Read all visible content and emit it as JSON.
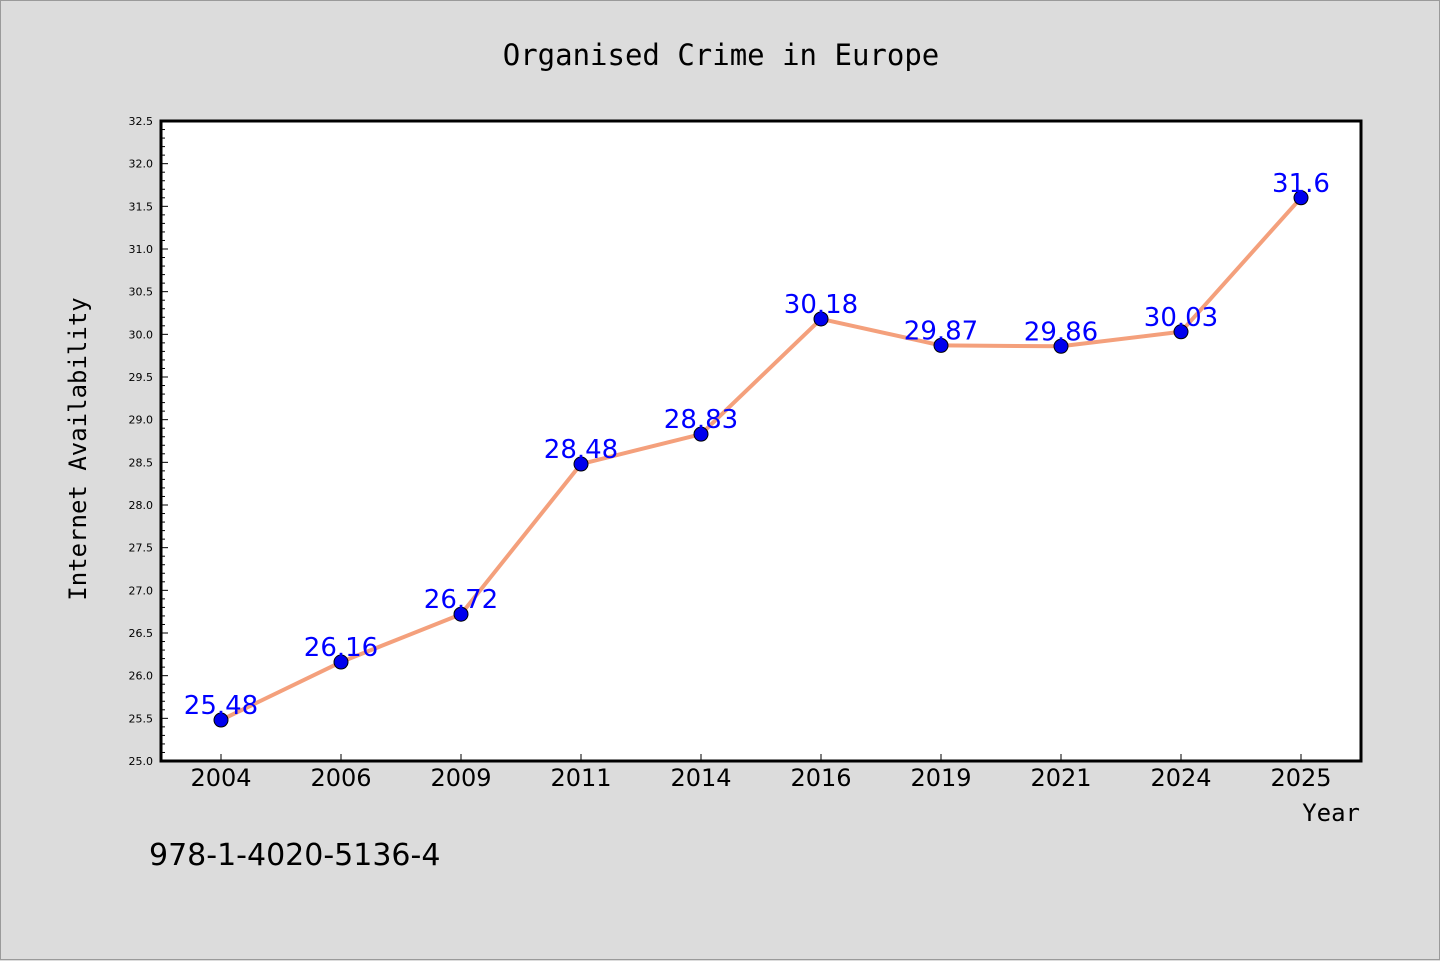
{
  "chart_data": {
    "type": "line",
    "title": "Organised Crime in Europe",
    "xlabel": "Year",
    "ylabel": "Internet Availability",
    "categories": [
      "2004",
      "2006",
      "2009",
      "2011",
      "2014",
      "2016",
      "2019",
      "2021",
      "2024",
      "2025"
    ],
    "values": [
      25.48,
      26.16,
      26.72,
      28.48,
      28.83,
      30.18,
      29.87,
      29.86,
      30.03,
      31.6
    ],
    "value_labels": [
      "25.48",
      "26.16",
      "26.72",
      "28.48",
      "28.83",
      "30.18",
      "29.87",
      "29.86",
      "30.03",
      "31.6"
    ],
    "ylim": [
      25.0,
      32.5
    ],
    "y_ticks": [
      "25.0",
      "25.5",
      "26.0",
      "26.5",
      "27.0",
      "27.5",
      "28.0",
      "28.5",
      "29.0",
      "29.5",
      "30.0",
      "30.5",
      "31.0",
      "31.5",
      "32.0",
      "32.5"
    ],
    "grid": false,
    "legend": "none",
    "colors": {
      "line": "#f4a07c",
      "marker": "#0000ee",
      "marker_edge": "#000000",
      "data_label": "#0000ff",
      "background": "#dcdcdc",
      "plot_area": "#ffffff"
    }
  },
  "annotation": {
    "text": "978-1-4020-5136-4"
  }
}
